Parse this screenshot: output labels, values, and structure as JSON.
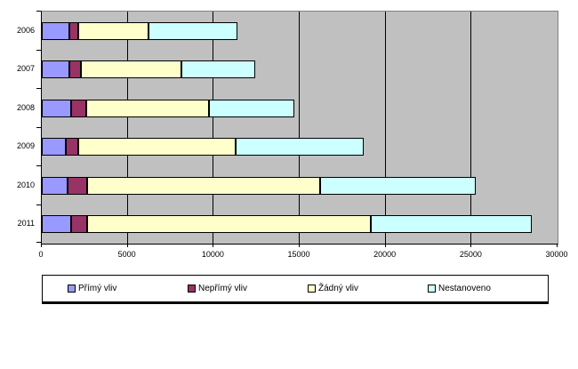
{
  "chart_data": {
    "type": "bar",
    "orientation": "horizontal",
    "stacked": true,
    "title": "",
    "categories": [
      "2006",
      "2007",
      "2008",
      "2009",
      "2010",
      "2011"
    ],
    "series": [
      {
        "name": "Přímý vliv",
        "color": "#9999ff",
        "values": [
          1600,
          1600,
          1700,
          1400,
          1500,
          1700
        ]
      },
      {
        "name": "Nepřímý vliv",
        "color": "#993366",
        "values": [
          500,
          700,
          900,
          700,
          1150,
          950
        ]
      },
      {
        "name": "Žádný vliv",
        "color": "#ffffcc",
        "values": [
          4100,
          5800,
          7100,
          9200,
          13550,
          16500
        ]
      },
      {
        "name": "Nestanoveno",
        "color": "#ccffff",
        "values": [
          5200,
          4300,
          5000,
          7400,
          9050,
          9350
        ]
      }
    ],
    "totals": [
      11400,
      12400,
      14700,
      18700,
      25250,
      28500
    ],
    "x_axis": {
      "min": 0,
      "max": 30000,
      "tick_interval": 5000,
      "tick_labels": [
        "0",
        "5000",
        "10000",
        "15000",
        "20000",
        "25000",
        "30000"
      ]
    },
    "grid": true,
    "plot_background": "#c0c0c0",
    "legend_position": "bottom"
  }
}
